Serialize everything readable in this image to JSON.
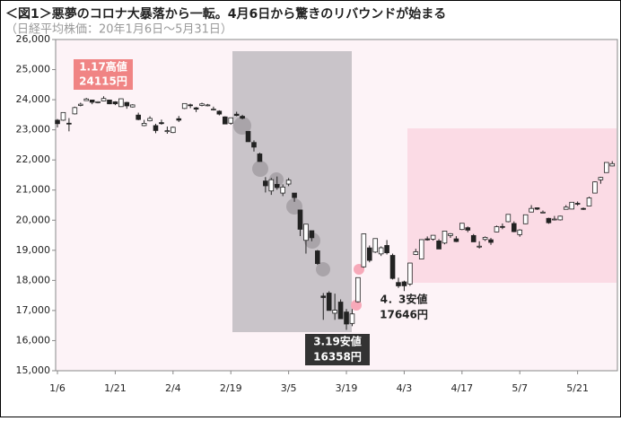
{
  "chart_data": {
    "type": "candlestick",
    "title": "＜図1＞悪夢のコロナ大暴落から一転。4月6日から驚きのリバウンドが始まる",
    "subtitle": "（日経平均株価：20年1月6日～5月31日）",
    "categories": [
      "1/6",
      null,
      null,
      null,
      null,
      null,
      null,
      null,
      null,
      null,
      "1/21",
      null,
      null,
      null,
      null,
      null,
      null,
      null,
      null,
      null,
      "2/4",
      null,
      null,
      null,
      null,
      null,
      null,
      null,
      null,
      null,
      "2/19",
      null,
      null,
      null,
      null,
      null,
      null,
      null,
      null,
      null,
      "3/5",
      null,
      null,
      null,
      null,
      null,
      null,
      null,
      null,
      null,
      "3/19",
      null,
      null,
      null,
      null,
      null,
      null,
      null,
      null,
      null,
      "4/3",
      null,
      null,
      null,
      null,
      null,
      null,
      null,
      null,
      null,
      "4/17",
      null,
      null,
      null,
      null,
      null,
      null,
      null,
      null,
      null,
      "5/7",
      null,
      null,
      null,
      null,
      null,
      null,
      null,
      null,
      null,
      "5/21",
      null,
      null,
      null,
      null,
      null,
      null
    ],
    "open": [
      23320,
      23320,
      23220,
      23530,
      23810,
      23970,
      23990,
      23900,
      23960,
      23990,
      23930,
      23770,
      23910,
      23760,
      23490,
      23140,
      23300,
      23140,
      23240,
      22940,
      22910,
      23370,
      23710,
      23830,
      23730,
      23810,
      23800,
      23660,
      23620,
      23430,
      23220,
      23520,
      23450,
      22950,
      22580,
      22200,
      21300,
      20970,
      21190,
      20900,
      21200,
      20900,
      20340,
      19330,
      19650,
      18980,
      17480,
      17580,
      16910,
      17280,
      16950,
      16570,
      17290,
      18450,
      19080,
      18940,
      18880,
      19160,
      18830,
      17930,
      17950,
      17880,
      18860,
      18710,
      19380,
      19370,
      19310,
      19240,
      19490,
      19380,
      19690,
      19750,
      19490,
      19120,
      19360,
      19350,
      19610,
      19790,
      19950,
      19890,
      19520,
      19880,
      20270,
      20410,
      20260,
      20060,
      20020,
      20010,
      20360,
      20370,
      20560,
      20390,
      20470,
      20900,
      21340,
      21580,
      21800
    ],
    "high": [
      23360,
      23580,
      23390,
      23770,
      23900,
      24060,
      24000,
      23950,
      24115,
      24000,
      23950,
      24040,
      23930,
      23850,
      23570,
      23330,
      23450,
      23200,
      23340,
      23110,
      23110,
      23460,
      23880,
      23870,
      23760,
      23900,
      23860,
      23770,
      23650,
      23450,
      23410,
      23600,
      23500,
      22950,
      22650,
      22240,
      21430,
      21400,
      21450,
      21190,
      21400,
      20900,
      20350,
      19870,
      19650,
      19010,
      17580,
      17640,
      17560,
      17370,
      17050,
      17050,
      18100,
      19560,
      19160,
      19390,
      19130,
      19340,
      18890,
      18090,
      17990,
      18580,
      19050,
      19360,
      19460,
      19500,
      19370,
      19640,
      19570,
      19470,
      19900,
      19790,
      19540,
      19300,
      19460,
      19410,
      19820,
      19890,
      20200,
      19960,
      19700,
      20180,
      20500,
      20420,
      20320,
      20080,
      20140,
      20150,
      20500,
      20600,
      20620,
      20420,
      20780,
      21290,
      21440,
      21920,
      21960
    ],
    "low": [
      23080,
      23300,
      22950,
      23510,
      23780,
      23960,
      23850,
      23880,
      23950,
      23850,
      23820,
      23760,
      23700,
      23740,
      23320,
      23120,
      23280,
      22890,
      23170,
      22870,
      22890,
      23260,
      23690,
      23720,
      23590,
      23780,
      23780,
      23640,
      23480,
      23190,
      23170,
      23450,
      23350,
      22600,
      22280,
      21940,
      20920,
      20840,
      21010,
      20800,
      21130,
      20610,
      19470,
      18890,
      19300,
      18520,
      16690,
      17000,
      16690,
      16720,
      16358,
      16480,
      17260,
      18420,
      18600,
      18910,
      18810,
      18860,
      18030,
      17750,
      17646,
      17820,
      18840,
      18710,
      19320,
      19320,
      19040,
      19200,
      19410,
      19270,
      19670,
      19600,
      19280,
      19060,
      19310,
      19180,
      19600,
      19700,
      19930,
      19600,
      19450,
      19870,
      20270,
      20340,
      20240,
      19880,
      19990,
      19990,
      20350,
      20360,
      20480,
      20340,
      20460,
      20900,
      21210,
      21580,
      21790
    ],
    "close": [
      23204,
      23575,
      23204,
      23739,
      23850,
      24025,
      23916,
      23933,
      24041,
      23864,
      23865,
      24031,
      23795,
      23827,
      23343,
      23216,
      23379,
      22977,
      23205,
      22972,
      23084,
      23320,
      23873,
      23828,
      23686,
      23861,
      23827,
      23688,
      23523,
      23194,
      23400,
      23479,
      23386,
      22605,
      22426,
      21948,
      21142,
      21344,
      21082,
      21100,
      21329,
      20749,
      19698,
      19867,
      19416,
      18559,
      17431,
      17002,
      17011,
      16726,
      16552,
      16887,
      18092,
      19546,
      18664,
      19389,
      19084,
      18917,
      18065,
      17818,
      17820,
      18576,
      18950,
      19353,
      19345,
      19498,
      19043,
      19638,
      19550,
      19290,
      19897,
      19669,
      19280,
      19137,
      19429,
      19262,
      19783,
      19771,
      20193,
      19619,
      19674,
      20179,
      20390,
      20366,
      20267,
      19914,
      20037,
      20133,
      20433,
      20595,
      20552,
      20388,
      20741,
      21271,
      21419,
      21916,
      21877
    ],
    "up_color": "#ffffff",
    "down_color": "#222222",
    "ylim": [
      15000,
      26000
    ],
    "yticks": [
      {
        "value": 15000,
        "label": "15,000"
      },
      {
        "value": 16000,
        "label": "16,000"
      },
      {
        "value": 17000,
        "label": "17,000"
      },
      {
        "value": 18000,
        "label": "18,000"
      },
      {
        "value": 19000,
        "label": "19,000"
      },
      {
        "value": 20000,
        "label": "20,000"
      },
      {
        "value": 21000,
        "label": "21,000"
      },
      {
        "value": 22000,
        "label": "22,000"
      },
      {
        "value": 23000,
        "label": "23,000"
      },
      {
        "value": 24000,
        "label": "24,000"
      },
      {
        "value": 25000,
        "label": "25,000"
      },
      {
        "value": 26000,
        "label": "26,000"
      }
    ],
    "annotations": [
      [
        "1.17高値",
        "24115円"
      ],
      [
        "3.19安値",
        "16358円"
      ],
      [
        "4．3安値",
        "17646円"
      ]
    ]
  }
}
